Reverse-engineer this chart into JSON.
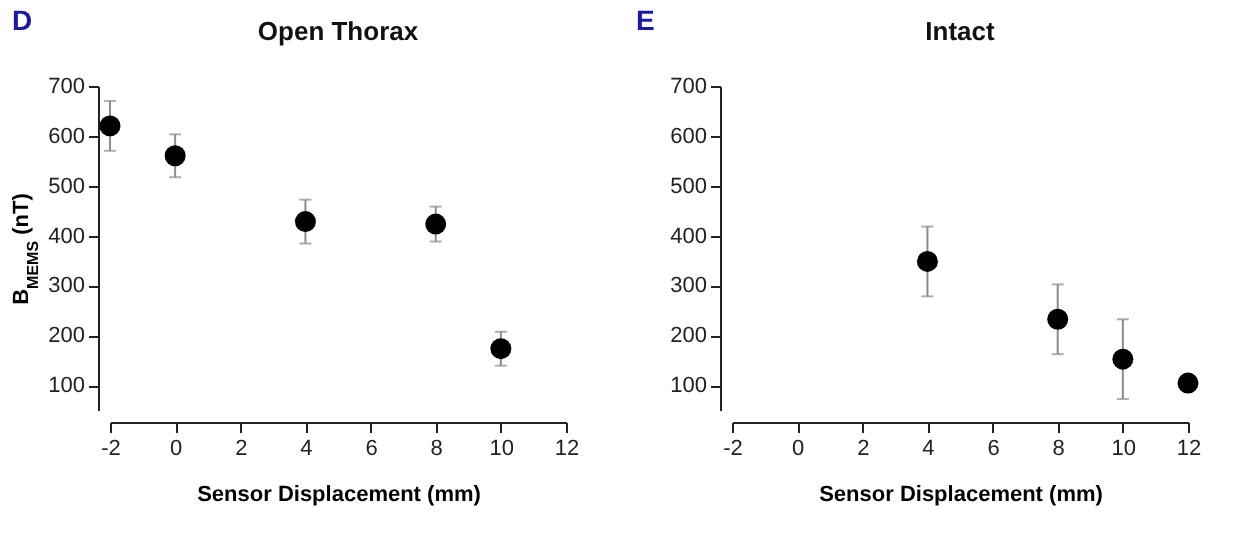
{
  "chart_data": [
    {
      "type": "scatter",
      "title": "Open Thorax",
      "xlabel": "Sensor Displacement (mm)",
      "ylabel": "B$_{MEMS}$ (nT)",
      "annotations": [
        "D"
      ],
      "x": [
        -2,
        0,
        4,
        8,
        10
      ],
      "values": [
        620,
        560,
        428,
        423,
        173
      ],
      "errors": [
        50,
        43,
        44,
        35,
        34
      ],
      "color": "#000000",
      "xlim": [
        -2,
        12
      ],
      "xticks": [
        -2,
        0,
        2,
        4,
        6,
        8,
        10,
        12
      ],
      "ylim": [
        50,
        700
      ],
      "yticks": [
        100,
        200,
        300,
        400,
        500,
        600,
        700
      ],
      "marker": "circle"
    },
    {
      "type": "scatter",
      "title": "Intact",
      "xlabel": "Sensor Displacement (mm)",
      "annotations": [
        "E"
      ],
      "x": [
        4,
        8,
        10,
        12
      ],
      "values": [
        348,
        232,
        152,
        104
      ],
      "errors": [
        70,
        70,
        80,
        8
      ],
      "color": "#000000",
      "xlim": [
        -2,
        12
      ],
      "xticks": [
        -2,
        0,
        2,
        4,
        6,
        8,
        10,
        12
      ],
      "ylim": [
        50,
        700
      ],
      "yticks": [
        100,
        200,
        300,
        400,
        500,
        600,
        700
      ],
      "marker": "circle"
    }
  ]
}
